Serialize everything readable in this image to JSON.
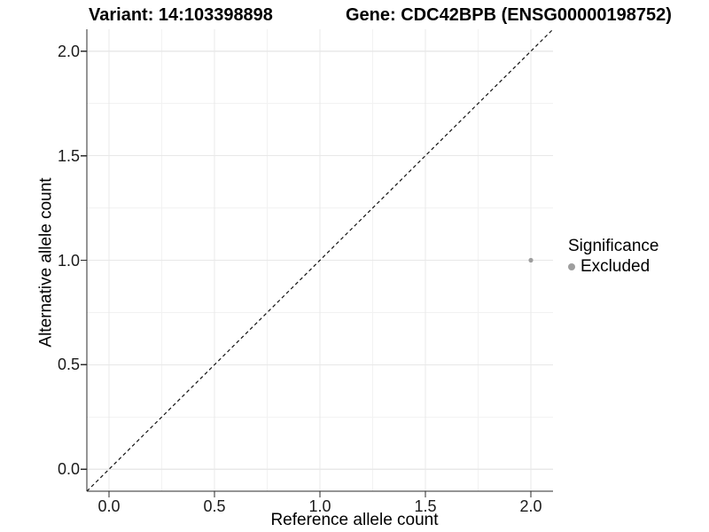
{
  "chart_data": {
    "type": "scatter",
    "title_left": "Variant: 14:103398898",
    "title_right": "Gene: CDC42BPB (ENSG00000198752)",
    "xlabel": "Reference allele count",
    "ylabel": "Alternative allele count",
    "xlim": [
      -0.105,
      2.105
    ],
    "ylim": [
      -0.105,
      2.105
    ],
    "x_ticks": [
      0,
      0.5,
      1,
      1.5,
      2
    ],
    "x_tick_labels": [
      "0.0",
      "0.5",
      "1.0",
      "1.5",
      "2.0"
    ],
    "y_ticks": [
      0,
      0.5,
      1,
      1.5,
      2
    ],
    "y_tick_labels": [
      "0.0",
      "0.5",
      "1.0",
      "1.5",
      "2.0"
    ],
    "minor_ticks_x": [
      0.25,
      0.75,
      1.25,
      1.75
    ],
    "minor_ticks_y": [
      0.25,
      0.75,
      1.25,
      1.75
    ],
    "grid": "major+minor",
    "reference_line": {
      "slope": 1,
      "intercept": 0,
      "style": "dashed",
      "color": "#111111"
    },
    "series": [
      {
        "name": "Excluded",
        "color": "#9e9e9e",
        "points": [
          {
            "x": 2.0,
            "y": 1.0
          }
        ]
      }
    ],
    "legend": {
      "title": "Significance",
      "position": "right",
      "items": [
        {
          "label": "Excluded",
          "color": "#9e9e9e",
          "marker": "circle"
        }
      ]
    },
    "style": {
      "grid_major_color": "#e8e8e8",
      "grid_minor_color": "#f2f2f2",
      "axis_color": "#2b2b2b",
      "point_radius": 2.6,
      "legend_dot_diameter": 8,
      "background": "#ffffff"
    }
  }
}
